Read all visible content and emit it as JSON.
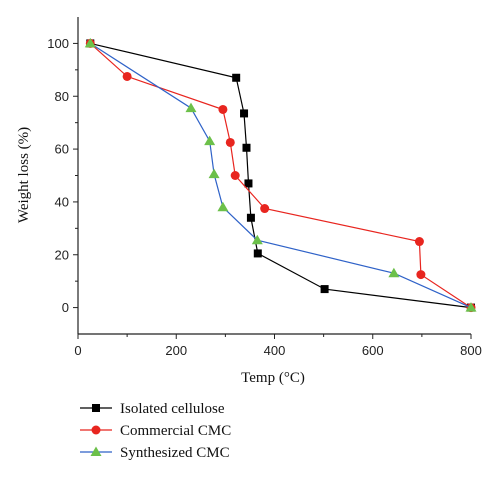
{
  "chart_data": {
    "type": "line",
    "title": "",
    "xlabel": "Temp (°C)",
    "ylabel": "Weight loss (%)",
    "xlim": [
      0,
      800
    ],
    "ylim": [
      -10,
      110
    ],
    "xticks": [
      "0",
      "200",
      "400",
      "600",
      "800"
    ],
    "yticks": [
      "0",
      "20",
      "40",
      "60",
      "80",
      "100"
    ],
    "grid": false,
    "legend_position": "bottom-left, below plot",
    "series": [
      {
        "name": "Isolated cellulose",
        "color": "#000000",
        "marker": "square",
        "x": [
          25,
          322,
          338,
          343,
          347,
          352,
          366,
          502,
          800
        ],
        "y": [
          100,
          87,
          73.5,
          60.5,
          47,
          34,
          20.5,
          7,
          0
        ]
      },
      {
        "name": "Commercial CMC",
        "color": "#e8251f",
        "marker": "circle",
        "x": [
          25,
          100,
          295,
          310,
          320,
          380,
          695,
          698,
          800
        ],
        "y": [
          100,
          87.5,
          75,
          62.5,
          50,
          37.5,
          25,
          12.5,
          0
        ]
      },
      {
        "name": "Synthesized CMC",
        "color": "#2f62c8",
        "marker_color": "#6cc04a",
        "marker": "triangle",
        "x": [
          25,
          230,
          268,
          277,
          295,
          365,
          643,
          800
        ],
        "y": [
          100,
          75.5,
          63,
          50.5,
          38,
          25.5,
          13,
          0
        ]
      }
    ]
  }
}
